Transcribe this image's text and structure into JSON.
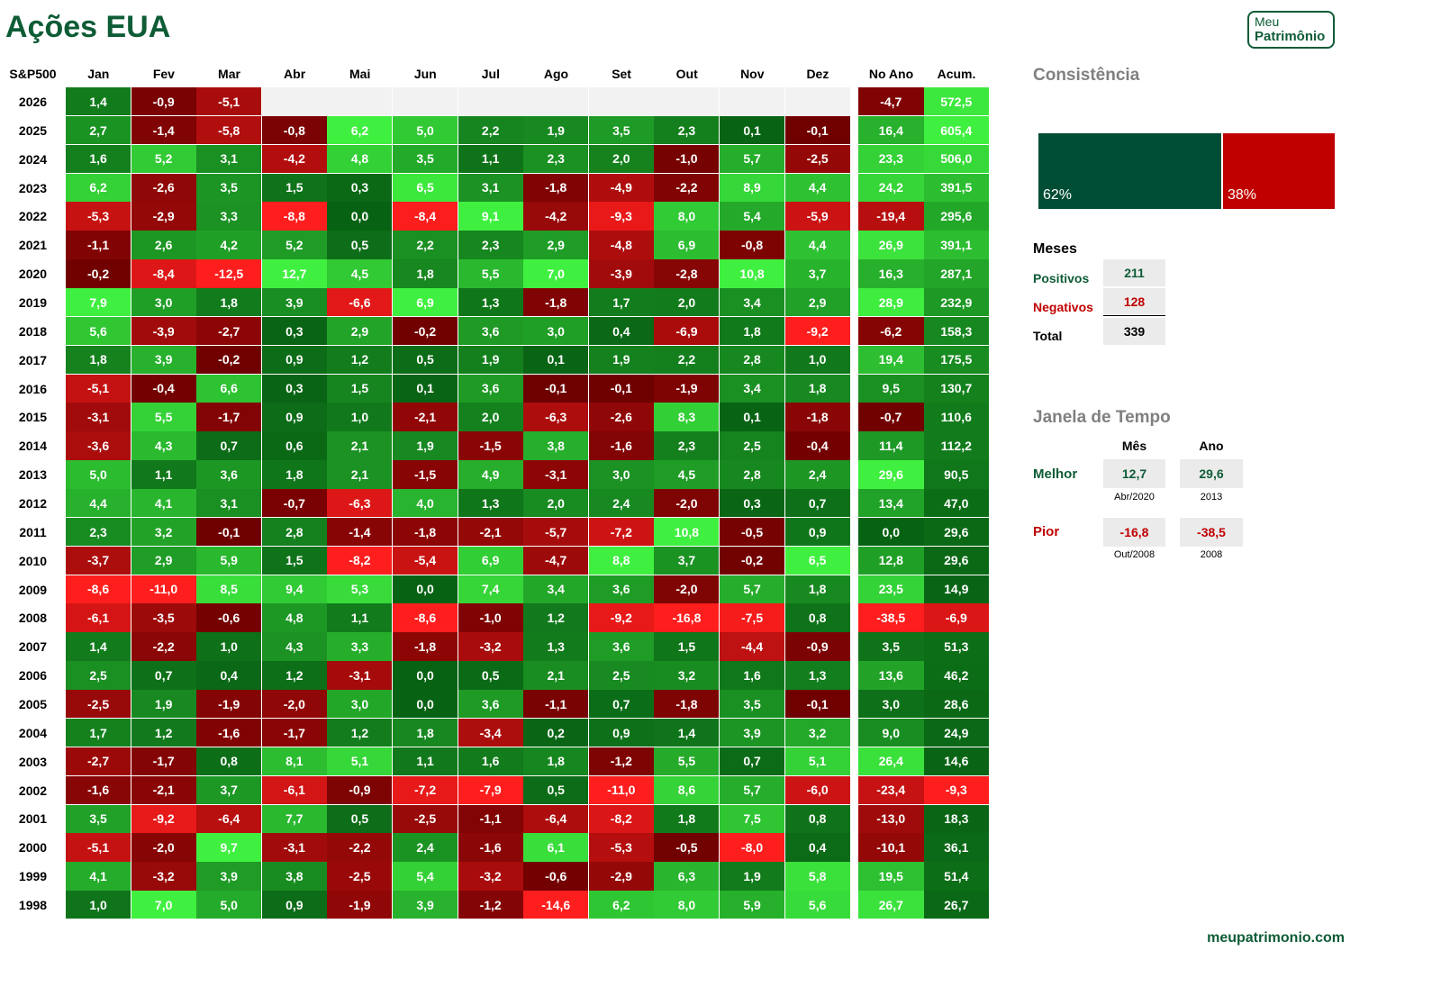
{
  "page": {
    "title": "Ações EUA",
    "footer": "meupatrimonio.com"
  },
  "logo": {
    "line1": "Meu",
    "line2": "Patrimônio"
  },
  "consistency": {
    "title": "Consistência",
    "positive_pct": 62,
    "negative_pct": 38,
    "positive_label": "62%",
    "negative_label": "38%",
    "positive_color": "#004d35",
    "negative_color": "#c00000"
  },
  "months_summary": {
    "title": "Meses",
    "positive": {
      "label": "Positivos",
      "value": "211"
    },
    "negative": {
      "label": "Negativos",
      "value": "128"
    },
    "total": {
      "label": "Total",
      "value": "339"
    }
  },
  "time_window": {
    "title": "Janela de Tempo",
    "col_month": "Mês",
    "col_year": "Ano",
    "best": {
      "label": "Melhor",
      "month_value": "12,7",
      "month_when": "Abr/2020",
      "year_value": "29,6",
      "year_when": "2013"
    },
    "worst": {
      "label": "Pior",
      "month_value": "-16,8",
      "month_when": "Out/2008",
      "year_value": "-38,5",
      "year_when": "2008"
    }
  },
  "chart_data": {
    "type": "heatmap",
    "row_header": "S&P500",
    "columns": [
      "Jan",
      "Fev",
      "Mar",
      "Abr",
      "Mai",
      "Jun",
      "Jul",
      "Ago",
      "Set",
      "Out",
      "Nov",
      "Dez",
      "No Ano",
      "Acum."
    ],
    "color_scale": {
      "positive": [
        "#086214",
        "#40f040"
      ],
      "negative": [
        "#6e0000",
        "#ff1e1e"
      ],
      "empty": "#f2f2f2"
    },
    "rows": [
      {
        "year": "2026",
        "values": [
          1.4,
          -0.9,
          -5.1,
          null,
          null,
          null,
          null,
          null,
          null,
          null,
          null,
          null,
          -4.7,
          572.5
        ]
      },
      {
        "year": "2025",
        "values": [
          2.7,
          -1.4,
          -5.8,
          -0.8,
          6.2,
          5.0,
          2.2,
          1.9,
          3.5,
          2.3,
          0.1,
          -0.1,
          16.4,
          605.4
        ]
      },
      {
        "year": "2024",
        "values": [
          1.6,
          5.2,
          3.1,
          -4.2,
          4.8,
          3.5,
          1.1,
          2.3,
          2.0,
          -1.0,
          5.7,
          -2.5,
          23.3,
          506.0
        ]
      },
      {
        "year": "2023",
        "values": [
          6.2,
          -2.6,
          3.5,
          1.5,
          0.3,
          6.5,
          3.1,
          -1.8,
          -4.9,
          -2.2,
          8.9,
          4.4,
          24.2,
          391.5
        ]
      },
      {
        "year": "2022",
        "values": [
          -5.3,
          -2.9,
          3.3,
          -8.8,
          0.0,
          -8.4,
          9.1,
          -4.2,
          -9.3,
          8.0,
          5.4,
          -5.9,
          -19.4,
          295.6
        ]
      },
      {
        "year": "2021",
        "values": [
          -1.1,
          2.6,
          4.2,
          5.2,
          0.5,
          2.2,
          2.3,
          2.9,
          -4.8,
          6.9,
          -0.8,
          4.4,
          26.9,
          391.1
        ]
      },
      {
        "year": "2020",
        "values": [
          -0.2,
          -8.4,
          -12.5,
          12.7,
          4.5,
          1.8,
          5.5,
          7.0,
          -3.9,
          -2.8,
          10.8,
          3.7,
          16.3,
          287.1
        ]
      },
      {
        "year": "2019",
        "values": [
          7.9,
          3.0,
          1.8,
          3.9,
          -6.6,
          6.9,
          1.3,
          -1.8,
          1.7,
          2.0,
          3.4,
          2.9,
          28.9,
          232.9
        ]
      },
      {
        "year": "2018",
        "values": [
          5.6,
          -3.9,
          -2.7,
          0.3,
          2.9,
          -0.2,
          3.6,
          3.0,
          0.4,
          -6.9,
          1.8,
          -9.2,
          -6.2,
          158.3
        ]
      },
      {
        "year": "2017",
        "values": [
          1.8,
          3.9,
          -0.2,
          0.9,
          1.2,
          0.5,
          1.9,
          0.1,
          1.9,
          2.2,
          2.8,
          1.0,
          19.4,
          175.5
        ]
      },
      {
        "year": "2016",
        "values": [
          -5.1,
          -0.4,
          6.6,
          0.3,
          1.5,
          0.1,
          3.6,
          -0.1,
          -0.1,
          -1.9,
          3.4,
          1.8,
          9.5,
          130.7
        ]
      },
      {
        "year": "2015",
        "values": [
          -3.1,
          5.5,
          -1.7,
          0.9,
          1.0,
          -2.1,
          2.0,
          -6.3,
          -2.6,
          8.3,
          0.1,
          -1.8,
          -0.7,
          110.6
        ]
      },
      {
        "year": "2014",
        "values": [
          -3.6,
          4.3,
          0.7,
          0.6,
          2.1,
          1.9,
          -1.5,
          3.8,
          -1.6,
          2.3,
          2.5,
          -0.4,
          11.4,
          112.2
        ]
      },
      {
        "year": "2013",
        "values": [
          5.0,
          1.1,
          3.6,
          1.8,
          2.1,
          -1.5,
          4.9,
          -3.1,
          3.0,
          4.5,
          2.8,
          2.4,
          29.6,
          90.5
        ]
      },
      {
        "year": "2012",
        "values": [
          4.4,
          4.1,
          3.1,
          -0.7,
          -6.3,
          4.0,
          1.3,
          2.0,
          2.4,
          -2.0,
          0.3,
          0.7,
          13.4,
          47.0
        ]
      },
      {
        "year": "2011",
        "values": [
          2.3,
          3.2,
          -0.1,
          2.8,
          -1.4,
          -1.8,
          -2.1,
          -5.7,
          -7.2,
          10.8,
          -0.5,
          0.9,
          0.0,
          29.6
        ]
      },
      {
        "year": "2010",
        "values": [
          -3.7,
          2.9,
          5.9,
          1.5,
          -8.2,
          -5.4,
          6.9,
          -4.7,
          8.8,
          3.7,
          -0.2,
          6.5,
          12.8,
          29.6
        ]
      },
      {
        "year": "2009",
        "values": [
          -8.6,
          -11.0,
          8.5,
          9.4,
          5.3,
          0.0,
          7.4,
          3.4,
          3.6,
          -2.0,
          5.7,
          1.8,
          23.5,
          14.9
        ]
      },
      {
        "year": "2008",
        "values": [
          -6.1,
          -3.5,
          -0.6,
          4.8,
          1.1,
          -8.6,
          -1.0,
          1.2,
          -9.2,
          -16.8,
          -7.5,
          0.8,
          -38.5,
          -6.9
        ]
      },
      {
        "year": "2007",
        "values": [
          1.4,
          -2.2,
          1.0,
          4.3,
          3.3,
          -1.8,
          -3.2,
          1.3,
          3.6,
          1.5,
          -4.4,
          -0.9,
          3.5,
          51.3
        ]
      },
      {
        "year": "2006",
        "values": [
          2.5,
          0.7,
          0.4,
          1.2,
          -3.1,
          0.0,
          0.5,
          2.1,
          2.5,
          3.2,
          1.6,
          1.3,
          13.6,
          46.2
        ]
      },
      {
        "year": "2005",
        "values": [
          -2.5,
          1.9,
          -1.9,
          -2.0,
          3.0,
          0.0,
          3.6,
          -1.1,
          0.7,
          -1.8,
          3.5,
          -0.1,
          3.0,
          28.6
        ]
      },
      {
        "year": "2004",
        "values": [
          1.7,
          1.2,
          -1.6,
          -1.7,
          1.2,
          1.8,
          -3.4,
          0.2,
          0.9,
          1.4,
          3.9,
          3.2,
          9.0,
          24.9
        ]
      },
      {
        "year": "2003",
        "values": [
          -2.7,
          -1.7,
          0.8,
          8.1,
          5.1,
          1.1,
          1.6,
          1.8,
          -1.2,
          5.5,
          0.7,
          5.1,
          26.4,
          14.6
        ]
      },
      {
        "year": "2002",
        "values": [
          -1.6,
          -2.1,
          3.7,
          -6.1,
          -0.9,
          -7.2,
          -7.9,
          0.5,
          -11.0,
          8.6,
          5.7,
          -6.0,
          -23.4,
          -9.3
        ]
      },
      {
        "year": "2001",
        "values": [
          3.5,
          -9.2,
          -6.4,
          7.7,
          0.5,
          -2.5,
          -1.1,
          -6.4,
          -8.2,
          1.8,
          7.5,
          0.8,
          -13.0,
          18.3
        ]
      },
      {
        "year": "2000",
        "values": [
          -5.1,
          -2.0,
          9.7,
          -3.1,
          -2.2,
          2.4,
          -1.6,
          6.1,
          -5.3,
          -0.5,
          -8.0,
          0.4,
          -10.1,
          36.1
        ]
      },
      {
        "year": "1999",
        "values": [
          4.1,
          -3.2,
          3.9,
          3.8,
          -2.5,
          5.4,
          -3.2,
          -0.6,
          -2.9,
          6.3,
          1.9,
          5.8,
          19.5,
          51.4
        ]
      },
      {
        "year": "1998",
        "values": [
          1.0,
          7.0,
          5.0,
          0.9,
          -1.9,
          3.9,
          -1.2,
          -14.6,
          6.2,
          8.0,
          5.9,
          5.6,
          26.7,
          26.7
        ]
      }
    ]
  }
}
